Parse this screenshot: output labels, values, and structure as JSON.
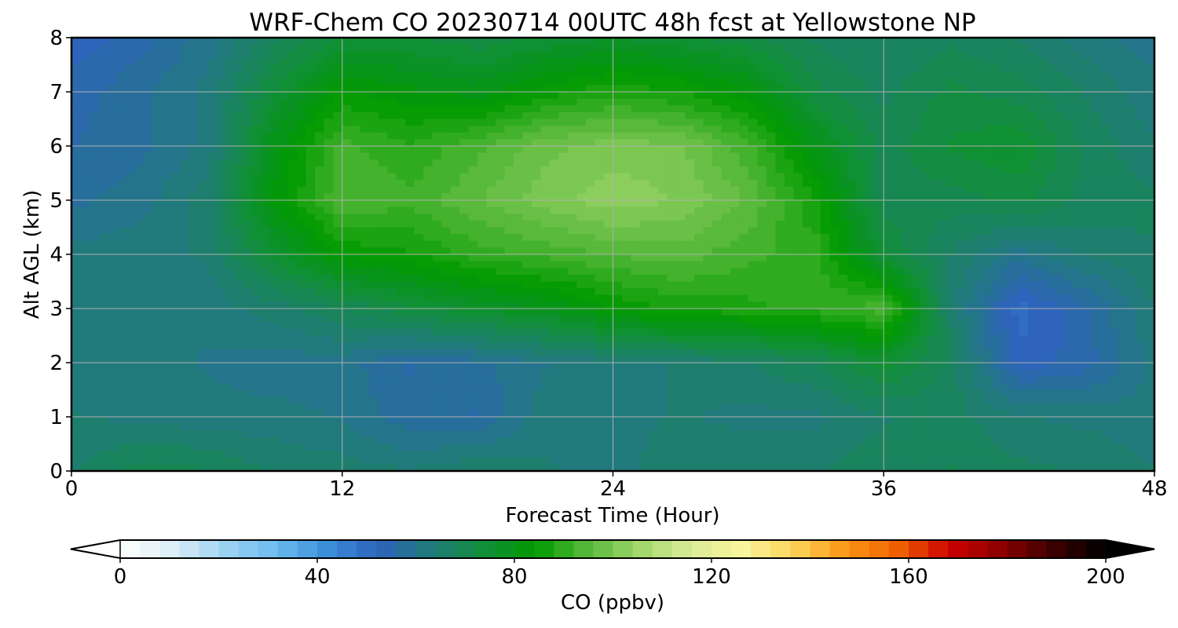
{
  "chart_data": {
    "type": "heatmap",
    "title": "WRF-Chem CO  20230714 00UTC 48h fcst at Yellowstone NP",
    "xlabel": "Forecast Time (Hour)",
    "ylabel": "Alt AGL (km)",
    "xlim": [
      0,
      48
    ],
    "ylim": [
      0,
      8
    ],
    "xticks": [
      "0",
      "12",
      "24",
      "36",
      "48"
    ],
    "yticks": [
      "0",
      "1",
      "2",
      "3",
      "4",
      "5",
      "6",
      "7",
      "8"
    ],
    "grid": true,
    "x": [
      0,
      3,
      6,
      9,
      12,
      15,
      18,
      21,
      24,
      27,
      30,
      33,
      36,
      39,
      42,
      45,
      48
    ],
    "y": [
      0,
      1,
      2,
      3,
      4,
      5,
      6,
      7,
      8
    ],
    "z": [
      [
        66,
        70,
        69,
        66,
        65,
        64,
        66,
        64,
        63,
        65,
        66,
        66,
        68,
        69,
        67,
        66,
        64
      ],
      [
        64,
        63,
        62,
        62,
        61,
        57,
        56,
        63,
        63,
        64,
        63,
        63,
        66,
        67,
        64,
        63,
        62
      ],
      [
        63,
        62,
        61,
        60,
        60,
        56,
        58,
        61,
        63,
        64,
        66,
        69,
        75,
        68,
        52,
        55,
        62
      ],
      [
        63,
        62,
        62,
        65,
        69,
        73,
        76,
        79,
        84,
        87,
        88,
        90,
        93,
        65,
        50,
        56,
        64
      ],
      [
        62,
        63,
        64,
        75,
        84,
        86,
        90,
        92,
        94,
        95,
        92,
        90,
        74,
        66,
        60,
        64,
        66
      ],
      [
        58,
        60,
        65,
        82,
        94,
        92,
        96,
        100,
        103,
        101,
        96,
        86,
        70,
        70,
        72,
        68,
        67
      ],
      [
        56,
        58,
        62,
        80,
        92,
        89,
        93,
        98,
        100,
        99,
        92,
        80,
        70,
        74,
        76,
        68,
        64
      ],
      [
        55,
        58,
        62,
        74,
        84,
        82,
        80,
        85,
        88,
        86,
        82,
        72,
        68,
        72,
        70,
        66,
        62
      ],
      [
        52,
        55,
        60,
        68,
        74,
        74,
        72,
        74,
        76,
        74,
        72,
        68,
        66,
        68,
        66,
        62,
        60
      ]
    ],
    "colorbar": {
      "label": "CO  (ppbv)",
      "ticks": [
        "0",
        "40",
        "80",
        "120",
        "160",
        "200"
      ],
      "range": [
        0,
        200
      ],
      "extend": "both",
      "colors": [
        "#ffffff",
        "#dbeef7",
        "#9fd3f0",
        "#6cbbef",
        "#3a8ed8",
        "#2e63bb",
        "#1f7b78",
        "#118e3a",
        "#009a00",
        "#57b83a",
        "#9fd66a",
        "#daec98",
        "#faf59c",
        "#fbd45a",
        "#fb9514",
        "#ee6000",
        "#cc0000",
        "#8a0000",
        "#3b0000",
        "#000000"
      ]
    }
  }
}
